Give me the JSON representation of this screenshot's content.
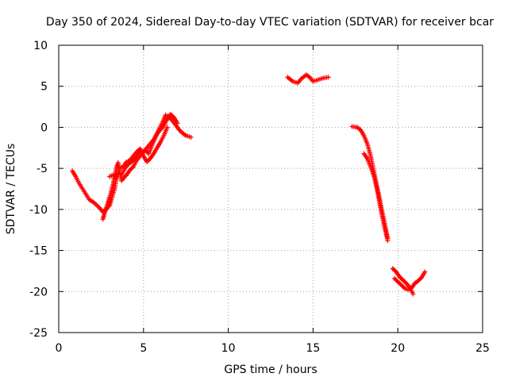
{
  "chart_data": {
    "type": "scatter",
    "title": "Day 350 of 2024, Sidereal Day-to-day VTEC variation (SDTVAR) for receiver bcar",
    "xlabel": "GPS time / hours",
    "ylabel": "SDTVAR / TECUs",
    "xlim": [
      0,
      25
    ],
    "ylim": [
      -25,
      10
    ],
    "xticks": [
      0,
      5,
      10,
      15,
      20,
      25
    ],
    "yticks": [
      -25,
      -20,
      -15,
      -10,
      -5,
      0,
      5,
      10
    ],
    "grid": true,
    "marker": "+",
    "series": [
      {
        "name": "SDTVAR",
        "color": "#ff0000",
        "segments": [
          [
            [
              0.8,
              -5.3
            ],
            [
              1.0,
              -6.0
            ],
            [
              1.2,
              -6.8
            ],
            [
              1.5,
              -7.8
            ],
            [
              1.8,
              -8.8
            ],
            [
              2.1,
              -9.2
            ],
            [
              2.4,
              -9.8
            ],
            [
              2.6,
              -10.3
            ],
            [
              2.8,
              -10.0
            ],
            [
              3.0,
              -9.5
            ],
            [
              3.1,
              -8.8
            ],
            [
              3.3,
              -7.5
            ],
            [
              3.4,
              -6.2
            ],
            [
              3.5,
              -5.5
            ],
            [
              3.7,
              -5.8
            ],
            [
              3.9,
              -5.0
            ],
            [
              4.1,
              -4.5
            ],
            [
              4.3,
              -4.2
            ],
            [
              4.5,
              -3.8
            ],
            [
              4.7,
              -3.2
            ],
            [
              4.9,
              -3.0
            ],
            [
              5.1,
              -2.8
            ],
            [
              5.3,
              -3.2
            ],
            [
              5.5,
              -2.2
            ],
            [
              5.7,
              -1.2
            ],
            [
              5.9,
              -0.3
            ],
            [
              6.1,
              0.5
            ],
            [
              6.3,
              1.5
            ],
            [
              6.5,
              1.3
            ],
            [
              6.7,
              0.8
            ],
            [
              6.9,
              0.3
            ],
            [
              7.1,
              -0.3
            ],
            [
              7.3,
              -0.7
            ],
            [
              7.5,
              -1.0
            ],
            [
              7.8,
              -1.2
            ]
          ],
          [
            [
              2.6,
              -11.2
            ],
            [
              2.7,
              -10.5
            ],
            [
              2.8,
              -9.8
            ],
            [
              2.9,
              -9.2
            ],
            [
              3.0,
              -8.5
            ],
            [
              3.2,
              -7.0
            ],
            [
              3.3,
              -6.0
            ],
            [
              3.4,
              -5.0
            ],
            [
              3.5,
              -4.3
            ],
            [
              3.7,
              -6.5
            ],
            [
              3.9,
              -6.0
            ],
            [
              4.0,
              -5.8
            ],
            [
              4.2,
              -5.2
            ],
            [
              4.4,
              -4.8
            ],
            [
              4.6,
              -4.0
            ],
            [
              4.8,
              -3.5
            ],
            [
              5.0,
              -3.0
            ],
            [
              5.2,
              -2.5
            ],
            [
              5.4,
              -2.0
            ],
            [
              5.6,
              -1.5
            ],
            [
              5.8,
              -0.8
            ],
            [
              6.0,
              -0.3
            ],
            [
              6.2,
              0.2
            ],
            [
              6.4,
              1.0
            ],
            [
              6.6,
              1.6
            ],
            [
              6.8,
              1.2
            ],
            [
              7.0,
              0.5
            ]
          ],
          [
            [
              3.0,
              -6.0
            ],
            [
              3.2,
              -5.8
            ],
            [
              3.4,
              -6.2
            ],
            [
              3.6,
              -5.0
            ],
            [
              3.8,
              -4.8
            ],
            [
              4.0,
              -4.2
            ],
            [
              4.2,
              -4.0
            ],
            [
              4.4,
              -3.5
            ],
            [
              4.6,
              -3.0
            ],
            [
              4.8,
              -2.6
            ],
            [
              5.0,
              -3.5
            ],
            [
              5.2,
              -4.2
            ],
            [
              5.4,
              -3.8
            ],
            [
              5.6,
              -3.2
            ],
            [
              5.8,
              -2.5
            ],
            [
              6.0,
              -1.8
            ],
            [
              6.2,
              -1.0
            ],
            [
              6.4,
              0.0
            ]
          ],
          [
            [
              13.5,
              6.1
            ],
            [
              13.8,
              5.6
            ],
            [
              14.1,
              5.4
            ],
            [
              14.3,
              5.9
            ],
            [
              14.6,
              6.4
            ],
            [
              14.8,
              6.1
            ],
            [
              15.0,
              5.6
            ],
            [
              15.3,
              5.8
            ],
            [
              15.6,
              6.0
            ],
            [
              15.9,
              6.1
            ]
          ],
          [
            [
              17.3,
              0.1
            ],
            [
              17.6,
              0.0
            ],
            [
              17.8,
              -0.3
            ],
            [
              18.0,
              -1.0
            ],
            [
              18.2,
              -2.0
            ],
            [
              18.4,
              -3.5
            ],
            [
              18.6,
              -5.5
            ],
            [
              18.8,
              -7.5
            ],
            [
              19.0,
              -9.5
            ],
            [
              19.2,
              -11.5
            ],
            [
              19.4,
              -13.5
            ]
          ],
          [
            [
              18.0,
              -3.2
            ],
            [
              18.2,
              -3.8
            ],
            [
              18.4,
              -4.8
            ],
            [
              18.6,
              -6.0
            ],
            [
              18.8,
              -7.8
            ],
            [
              19.0,
              -10.0
            ],
            [
              19.2,
              -12.0
            ],
            [
              19.4,
              -13.8
            ]
          ],
          [
            [
              19.7,
              -17.2
            ],
            [
              19.9,
              -17.6
            ],
            [
              20.1,
              -18.2
            ],
            [
              20.3,
              -18.6
            ],
            [
              20.5,
              -19.0
            ],
            [
              20.7,
              -19.5
            ],
            [
              20.9,
              -20.3
            ]
          ],
          [
            [
              19.8,
              -18.4
            ],
            [
              20.0,
              -18.8
            ],
            [
              20.2,
              -19.2
            ],
            [
              20.4,
              -19.6
            ],
            [
              20.6,
              -19.8
            ],
            [
              20.8,
              -19.6
            ],
            [
              21.0,
              -19.0
            ],
            [
              21.2,
              -18.7
            ],
            [
              21.4,
              -18.3
            ],
            [
              21.6,
              -17.6
            ]
          ]
        ]
      }
    ]
  }
}
